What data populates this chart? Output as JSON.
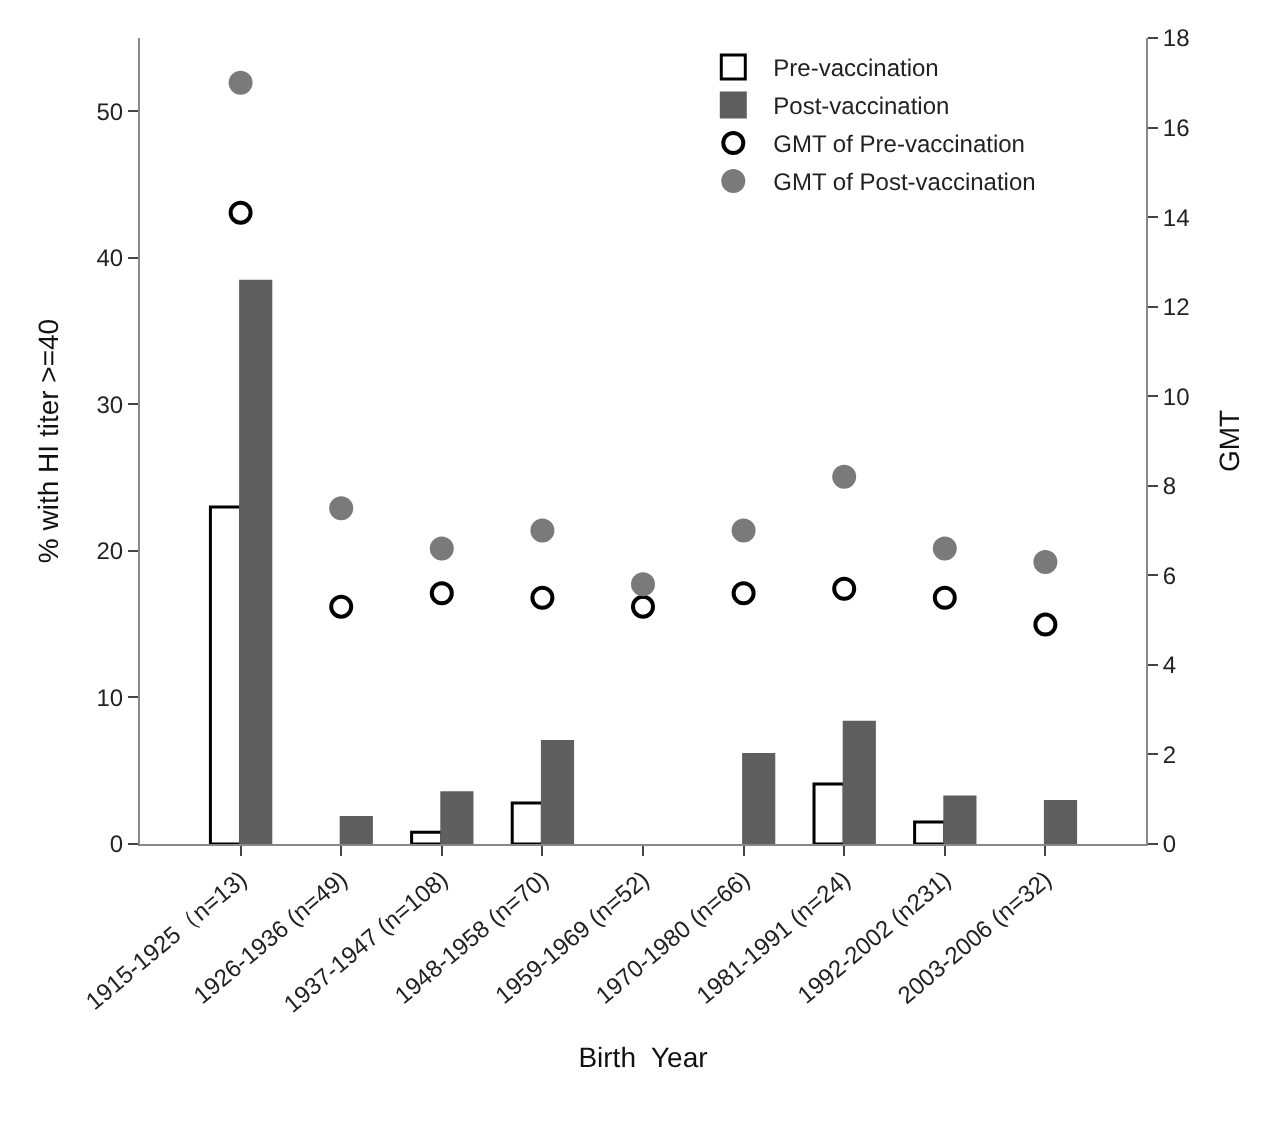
{
  "chart_data": {
    "type": "bar",
    "xlabel": "Birth  Year",
    "ylabel": "% with HI titer >=40",
    "y2label": "GMT",
    "categories": [
      "1915-1925（n=13)",
      "1926-1936 (n=49)",
      "1937-1947 (n=108)",
      "1948-1958 (n=70)",
      "1959-1969 (n=52)",
      "1970-1980 (n=66)",
      "1981-1991 (n=24)",
      "1992-2002 (n231)",
      "2003-2006 (n=32)"
    ],
    "series": [
      {
        "name": "Pre-vaccination",
        "color": "#ffffff",
        "values": [
          23,
          0,
          0.8,
          2.8,
          0,
          0,
          4.1,
          1.5,
          0
        ]
      },
      {
        "name": "Post-vaccination",
        "color": "#5f5f5f",
        "values": [
          38.4,
          1.8,
          3.5,
          7.0,
          0,
          6.1,
          8.3,
          3.2,
          2.9
        ]
      },
      {
        "name": "GMT of Pre-vaccination",
        "type": "scatter",
        "axis": "y2",
        "color": "#ffffff",
        "values": [
          14.1,
          5.3,
          5.6,
          5.5,
          5.3,
          5.6,
          5.7,
          5.5,
          4.9
        ]
      },
      {
        "name": "GMT of Post-vaccination",
        "type": "scatter",
        "axis": "y2",
        "color": "#7a7a7a",
        "values": [
          17.0,
          7.5,
          6.6,
          7.0,
          5.8,
          7.0,
          8.2,
          6.6,
          6.3
        ]
      }
    ],
    "ylim": [
      0,
      55
    ],
    "yticks": [
      0,
      10,
      20,
      30,
      40,
      50
    ],
    "y2lim": [
      0,
      18
    ],
    "y2ticks": [
      0,
      2,
      4,
      6,
      8,
      10,
      12,
      14,
      16,
      18
    ],
    "legend": "top right",
    "marker": "circle"
  }
}
